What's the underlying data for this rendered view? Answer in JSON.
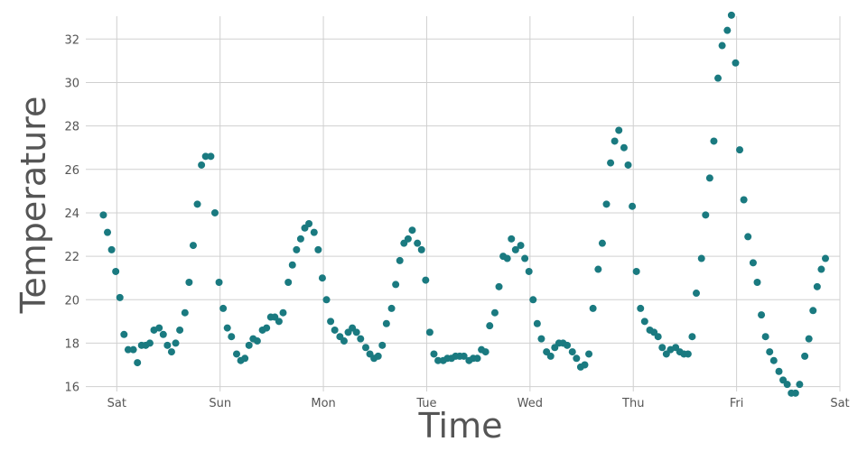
{
  "chart_data": {
    "type": "scatter",
    "xlabel": "Time",
    "ylabel": "Temperature",
    "x_tick_labels": [
      "Sat",
      "Sun",
      "Mon",
      "Tue",
      "Wed",
      "Thu",
      "Fri",
      "Sat"
    ],
    "y_ticks": [
      16,
      18,
      20,
      22,
      24,
      26,
      28,
      30,
      32
    ],
    "ylim": [
      15.9,
      33.3
    ],
    "x_unit": "day",
    "xlim": [
      -0.3,
      7.0
    ],
    "grid": true,
    "marker_color": "#1a7a80",
    "points": [
      [
        -0.13,
        23.9
      ],
      [
        -0.09,
        23.1
      ],
      [
        -0.05,
        22.3
      ],
      [
        -0.01,
        21.3
      ],
      [
        0.03,
        20.1
      ],
      [
        0.07,
        18.4
      ],
      [
        0.11,
        17.7
      ],
      [
        0.16,
        17.7
      ],
      [
        0.2,
        17.1
      ],
      [
        0.24,
        17.9
      ],
      [
        0.28,
        17.9
      ],
      [
        0.32,
        18.0
      ],
      [
        0.36,
        18.6
      ],
      [
        0.41,
        18.7
      ],
      [
        0.45,
        18.4
      ],
      [
        0.49,
        17.9
      ],
      [
        0.53,
        17.6
      ],
      [
        0.57,
        18.0
      ],
      [
        0.61,
        18.6
      ],
      [
        0.66,
        19.4
      ],
      [
        0.7,
        20.8
      ],
      [
        0.74,
        22.5
      ],
      [
        0.78,
        24.4
      ],
      [
        0.82,
        26.2
      ],
      [
        0.86,
        26.6
      ],
      [
        0.91,
        26.6
      ],
      [
        0.95,
        24.0
      ],
      [
        0.99,
        20.8
      ],
      [
        1.03,
        19.6
      ],
      [
        1.07,
        18.7
      ],
      [
        1.11,
        18.3
      ],
      [
        1.16,
        17.5
      ],
      [
        1.2,
        17.2
      ],
      [
        1.24,
        17.3
      ],
      [
        1.28,
        17.9
      ],
      [
        1.32,
        18.2
      ],
      [
        1.36,
        18.1
      ],
      [
        1.41,
        18.6
      ],
      [
        1.45,
        18.7
      ],
      [
        1.49,
        19.2
      ],
      [
        1.53,
        19.2
      ],
      [
        1.57,
        19.0
      ],
      [
        1.61,
        19.4
      ],
      [
        1.66,
        20.8
      ],
      [
        1.7,
        21.6
      ],
      [
        1.74,
        22.3
      ],
      [
        1.78,
        22.8
      ],
      [
        1.82,
        23.3
      ],
      [
        1.86,
        23.5
      ],
      [
        1.91,
        23.1
      ],
      [
        1.95,
        22.3
      ],
      [
        1.99,
        21.0
      ],
      [
        2.03,
        20.0
      ],
      [
        2.07,
        19.0
      ],
      [
        2.11,
        18.6
      ],
      [
        2.16,
        18.3
      ],
      [
        2.2,
        18.1
      ],
      [
        2.24,
        18.5
      ],
      [
        2.28,
        18.7
      ],
      [
        2.32,
        18.5
      ],
      [
        2.36,
        18.2
      ],
      [
        2.41,
        17.8
      ],
      [
        2.45,
        17.5
      ],
      [
        2.49,
        17.3
      ],
      [
        2.53,
        17.4
      ],
      [
        2.57,
        17.9
      ],
      [
        2.61,
        18.9
      ],
      [
        2.66,
        19.6
      ],
      [
        2.7,
        20.7
      ],
      [
        2.74,
        21.8
      ],
      [
        2.78,
        22.6
      ],
      [
        2.82,
        22.8
      ],
      [
        2.86,
        23.2
      ],
      [
        2.91,
        22.6
      ],
      [
        2.95,
        22.3
      ],
      [
        2.99,
        20.9
      ],
      [
        3.03,
        18.5
      ],
      [
        3.07,
        17.5
      ],
      [
        3.11,
        17.2
      ],
      [
        3.16,
        17.2
      ],
      [
        3.2,
        17.3
      ],
      [
        3.24,
        17.3
      ],
      [
        3.28,
        17.4
      ],
      [
        3.32,
        17.4
      ],
      [
        3.36,
        17.4
      ],
      [
        3.41,
        17.2
      ],
      [
        3.45,
        17.3
      ],
      [
        3.49,
        17.3
      ],
      [
        3.53,
        17.7
      ],
      [
        3.57,
        17.6
      ],
      [
        3.61,
        18.8
      ],
      [
        3.66,
        19.4
      ],
      [
        3.7,
        20.6
      ],
      [
        3.74,
        22.0
      ],
      [
        3.78,
        21.9
      ],
      [
        3.82,
        22.8
      ],
      [
        3.86,
        22.3
      ],
      [
        3.91,
        22.5
      ],
      [
        3.95,
        21.9
      ],
      [
        3.99,
        21.3
      ],
      [
        4.03,
        20.0
      ],
      [
        4.07,
        18.9
      ],
      [
        4.11,
        18.2
      ],
      [
        4.16,
        17.6
      ],
      [
        4.2,
        17.4
      ],
      [
        4.24,
        17.8
      ],
      [
        4.28,
        18.0
      ],
      [
        4.32,
        18.0
      ],
      [
        4.36,
        17.9
      ],
      [
        4.41,
        17.6
      ],
      [
        4.45,
        17.3
      ],
      [
        4.49,
        16.9
      ],
      [
        4.53,
        17.0
      ],
      [
        4.57,
        17.5
      ],
      [
        4.61,
        19.6
      ],
      [
        4.66,
        21.4
      ],
      [
        4.7,
        22.6
      ],
      [
        4.74,
        24.4
      ],
      [
        4.78,
        26.3
      ],
      [
        4.82,
        27.3
      ],
      [
        4.86,
        27.8
      ],
      [
        4.91,
        27.0
      ],
      [
        4.95,
        26.2
      ],
      [
        4.99,
        24.3
      ],
      [
        5.03,
        21.3
      ],
      [
        5.07,
        19.6
      ],
      [
        5.11,
        19.0
      ],
      [
        5.16,
        18.6
      ],
      [
        5.2,
        18.5
      ],
      [
        5.24,
        18.3
      ],
      [
        5.28,
        17.8
      ],
      [
        5.32,
        17.5
      ],
      [
        5.36,
        17.7
      ],
      [
        5.41,
        17.8
      ],
      [
        5.45,
        17.6
      ],
      [
        5.49,
        17.5
      ],
      [
        5.53,
        17.5
      ],
      [
        5.57,
        18.3
      ],
      [
        5.61,
        20.3
      ],
      [
        5.66,
        21.9
      ],
      [
        5.7,
        23.9
      ],
      [
        5.74,
        25.6
      ],
      [
        5.78,
        27.3
      ],
      [
        5.82,
        30.2
      ],
      [
        5.86,
        31.7
      ],
      [
        5.91,
        32.4
      ],
      [
        5.95,
        33.1
      ],
      [
        5.99,
        30.9
      ],
      [
        6.03,
        26.9
      ],
      [
        6.07,
        24.6
      ],
      [
        6.11,
        22.9
      ],
      [
        6.16,
        21.7
      ],
      [
        6.2,
        20.8
      ],
      [
        6.24,
        19.3
      ],
      [
        6.28,
        18.3
      ],
      [
        6.32,
        17.6
      ],
      [
        6.36,
        17.2
      ],
      [
        6.41,
        16.7
      ],
      [
        6.45,
        16.3
      ],
      [
        6.49,
        16.1
      ],
      [
        6.53,
        15.7
      ],
      [
        6.57,
        15.7
      ],
      [
        6.61,
        16.1
      ],
      [
        6.66,
        17.4
      ],
      [
        6.7,
        18.2
      ],
      [
        6.74,
        19.5
      ],
      [
        6.78,
        20.6
      ],
      [
        6.82,
        21.4
      ],
      [
        6.86,
        21.9
      ]
    ]
  }
}
